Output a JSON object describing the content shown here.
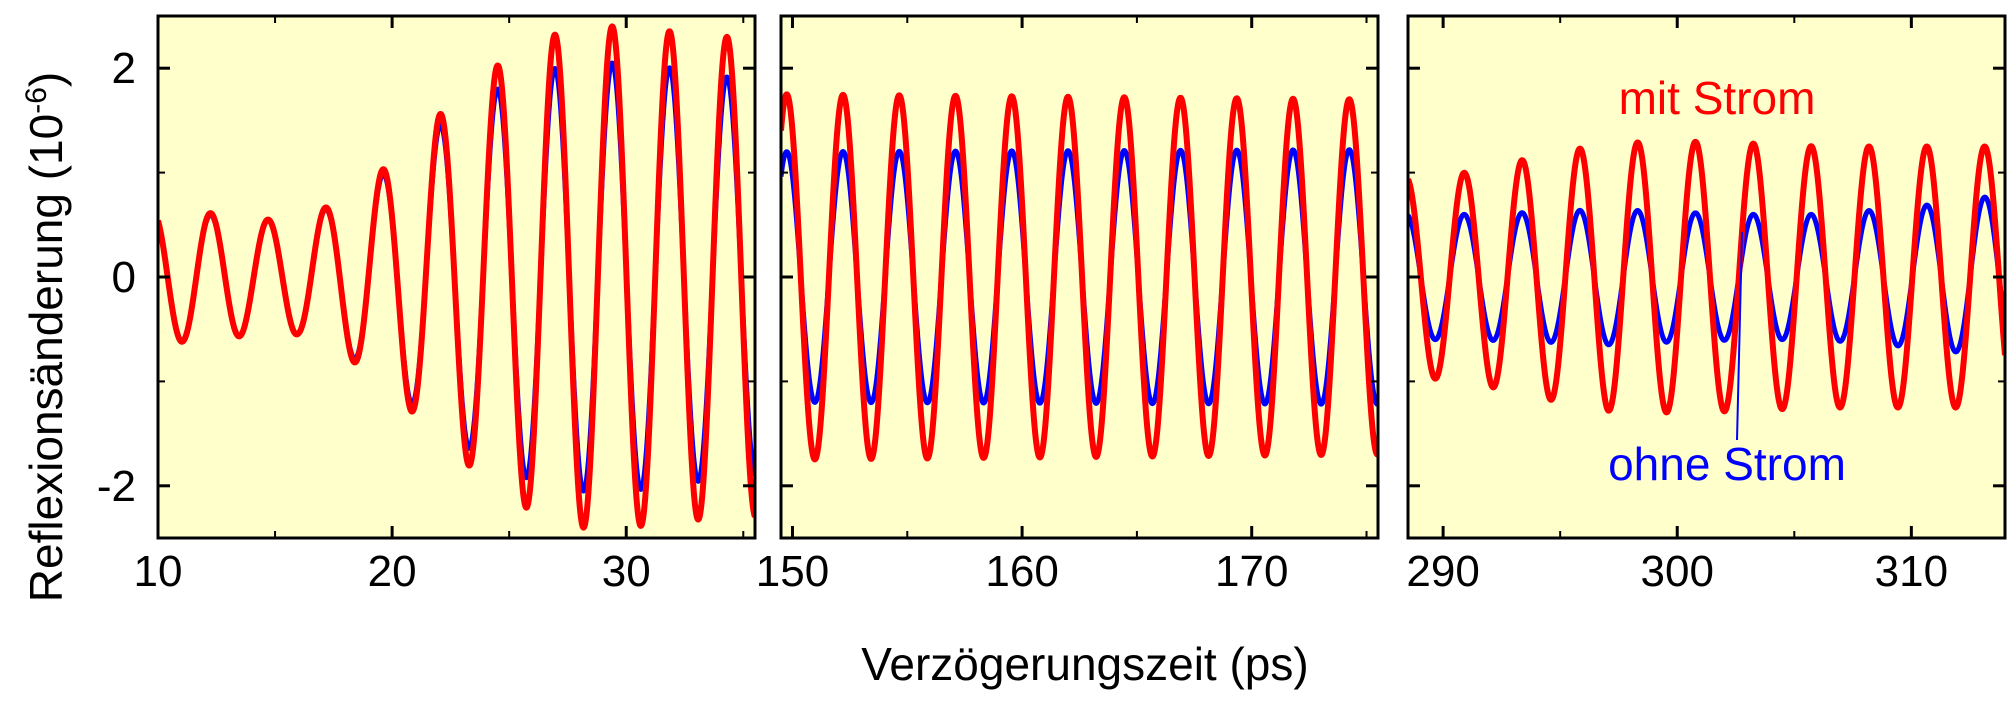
{
  "chart_data": {
    "type": "line",
    "xlabel": "Verzögerungszeit (ps)",
    "ylabel": "Reflexionsänderung (10",
    "ylabel_exponent": "-6",
    "ylabel_close": ")",
    "ylim": [
      -2.5,
      2.5
    ],
    "yticks": [
      -2,
      0,
      2
    ],
    "ytick_labels": [
      "-2",
      "0",
      "2"
    ],
    "plot_background": "#ffffcc",
    "grid": false,
    "legend": "none",
    "series": [
      {
        "key": "ohne",
        "name": "ohne Strom",
        "color": "#0000ff"
      },
      {
        "key": "mit",
        "name": "mit Strom",
        "color": "#ff0000"
      }
    ],
    "panels": [
      {
        "xlim": [
          10,
          35.5
        ],
        "xticks": [
          10,
          20,
          30
        ],
        "xtick_labels": [
          "10",
          "20",
          "30"
        ],
        "period": 2.45,
        "phase_ref": 12.25,
        "envelope_x": [
          10,
          12,
          14,
          16,
          18,
          20,
          22,
          24,
          26,
          28,
          30,
          32,
          34,
          35.5
        ],
        "envelope_ohne": [
          0.62,
          0.6,
          0.55,
          0.55,
          0.72,
          1.05,
          1.45,
          1.75,
          1.95,
          2.05,
          2.05,
          2.0,
          1.92,
          1.9
        ],
        "envelope_mit": [
          0.62,
          0.62,
          0.55,
          0.55,
          0.75,
          1.1,
          1.55,
          1.95,
          2.25,
          2.4,
          2.4,
          2.35,
          2.3,
          2.3
        ]
      },
      {
        "xlim": [
          149.5,
          175.5
        ],
        "xticks": [
          150,
          160,
          170
        ],
        "xtick_labels": [
          "150",
          "160",
          "170"
        ],
        "period": 2.45,
        "phase_ref": 152.2,
        "envelope_x": [
          149.5,
          175.5
        ],
        "envelope_ohne": [
          1.2,
          1.22
        ],
        "envelope_mit": [
          1.75,
          1.7
        ]
      },
      {
        "xlim": [
          288.5,
          314
        ],
        "xticks": [
          290,
          300,
          310
        ],
        "xtick_labels": [
          "290",
          "300",
          "310"
        ],
        "period": 2.47,
        "phase_ref": 290.9,
        "envelope_x": [
          288.5,
          291,
          294,
          297,
          300,
          303,
          306,
          309,
          312,
          314
        ],
        "envelope_ohne": [
          0.6,
          0.6,
          0.62,
          0.65,
          0.62,
          0.6,
          0.6,
          0.65,
          0.72,
          0.8
        ],
        "envelope_mit": [
          0.95,
          1.0,
          1.15,
          1.28,
          1.3,
          1.28,
          1.25,
          1.25,
          1.25,
          1.25
        ]
      }
    ],
    "annotations": [
      {
        "text": "mit Strom",
        "series": "mit"
      },
      {
        "text": "ohne Strom",
        "series": "ohne"
      }
    ]
  }
}
